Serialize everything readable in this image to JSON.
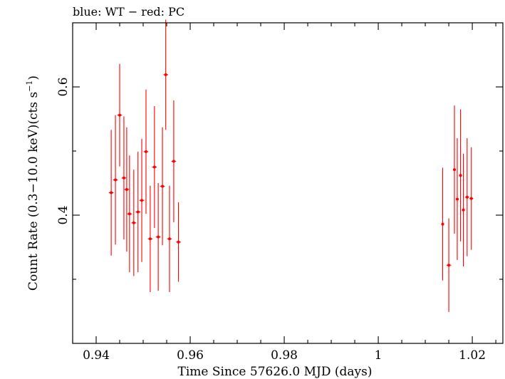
{
  "chart_data": {
    "type": "scatter",
    "title": "blue: WT − red: PC",
    "xlabel": "Time Since 57626.0 MJD (days)",
    "ylabel_main": "Count Rate (0.3−10.0 keV)(cts s",
    "ylabel_sup": "−1",
    "ylabel_end": ")",
    "xlim": [
      0.935,
      1.0265
    ],
    "ylim": [
      0.2,
      0.7
    ],
    "x_ticks": [
      {
        "value": 0.94,
        "label": "0.94"
      },
      {
        "value": 0.96,
        "label": "0.96"
      },
      {
        "value": 0.98,
        "label": "0.98"
      },
      {
        "value": 1.0,
        "label": "1"
      },
      {
        "value": 1.02,
        "label": "1.02"
      }
    ],
    "x_minor_step": 0.005,
    "y_ticks": [
      {
        "value": 0.4,
        "label": "0.4"
      },
      {
        "value": 0.6,
        "label": "0.6"
      }
    ],
    "y_minor_step": 0.1,
    "series": [
      {
        "name": "PC",
        "color": "#ff0000",
        "points": [
          {
            "x": 0.9432,
            "xerr": 0.0005,
            "y": 0.435,
            "yerr": 0.098
          },
          {
            "x": 0.9441,
            "xerr": 0.0005,
            "y": 0.455,
            "yerr": 0.101
          },
          {
            "x": 0.945,
            "xerr": 0.0005,
            "y": 0.556,
            "yerr": 0.08
          },
          {
            "x": 0.9459,
            "xerr": 0.0005,
            "y": 0.458,
            "yerr": 0.096
          },
          {
            "x": 0.9465,
            "xerr": 0.0005,
            "y": 0.44,
            "yerr": 0.097
          },
          {
            "x": 0.9471,
            "xerr": 0.0005,
            "y": 0.402,
            "yerr": 0.091
          },
          {
            "x": 0.948,
            "xerr": 0.0005,
            "y": 0.388,
            "yerr": 0.083
          },
          {
            "x": 0.9489,
            "xerr": 0.0005,
            "y": 0.405,
            "yerr": 0.094
          },
          {
            "x": 0.9497,
            "xerr": 0.0005,
            "y": 0.423,
            "yerr": 0.096
          },
          {
            "x": 0.9506,
            "xerr": 0.0005,
            "y": 0.499,
            "yerr": 0.097
          },
          {
            "x": 0.9515,
            "xerr": 0.0005,
            "y": 0.363,
            "yerr": 0.083
          },
          {
            "x": 0.9524,
            "xerr": 0.0005,
            "y": 0.475,
            "yerr": 0.095
          },
          {
            "x": 0.9532,
            "xerr": 0.0005,
            "y": 0.366,
            "yerr": 0.084
          },
          {
            "x": 0.9541,
            "xerr": 0.0005,
            "y": 0.445,
            "yerr": 0.092
          },
          {
            "x": 0.9548,
            "xerr": 0.0005,
            "y": 0.619,
            "yerr": 0.086
          },
          {
            "x": 0.9556,
            "xerr": 0.0005,
            "y": 0.363,
            "yerr": 0.083
          },
          {
            "x": 0.9565,
            "xerr": 0.0005,
            "y": 0.484,
            "yerr": 0.095
          },
          {
            "x": 0.9575,
            "xerr": 0.0005,
            "y": 0.358,
            "yerr": 0.062
          },
          {
            "x": 1.0137,
            "xerr": 0.0003,
            "y": 0.386,
            "yerr": 0.088
          },
          {
            "x": 1.015,
            "xerr": 0.0005,
            "y": 0.322,
            "yerr": 0.073
          },
          {
            "x": 1.0162,
            "xerr": 0.0003,
            "y": 0.471,
            "yerr": 0.1
          },
          {
            "x": 1.0168,
            "xerr": 0.0003,
            "y": 0.425,
            "yerr": 0.095
          },
          {
            "x": 1.0175,
            "xerr": 0.0003,
            "y": 0.462,
            "yerr": 0.103
          },
          {
            "x": 1.0181,
            "xerr": 0.0003,
            "y": 0.408,
            "yerr": 0.088
          },
          {
            "x": 1.0189,
            "xerr": 0.0004,
            "y": 0.428,
            "yerr": 0.092
          },
          {
            "x": 1.0198,
            "xerr": 0.0004,
            "y": 0.426,
            "yerr": 0.08
          }
        ]
      }
    ]
  }
}
